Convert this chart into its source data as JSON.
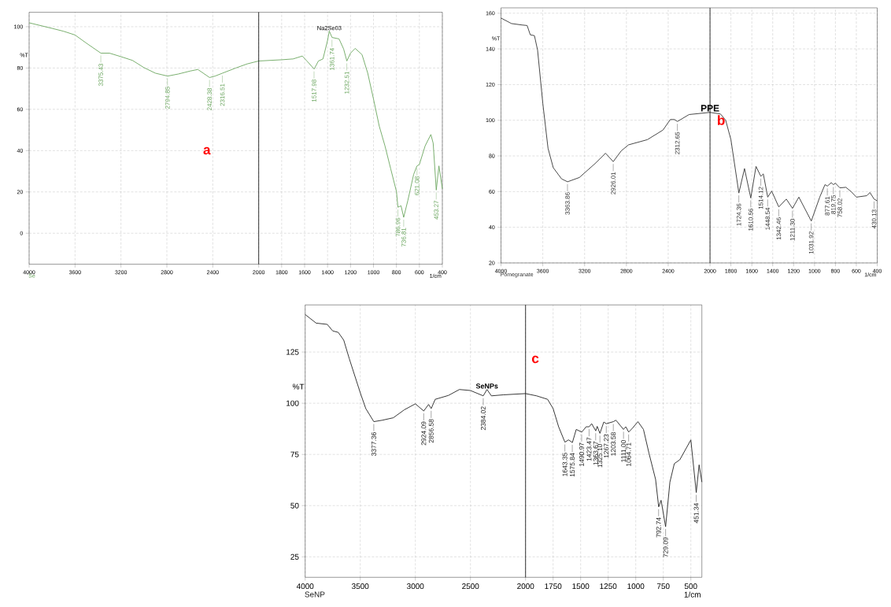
{
  "chart_data": [
    {
      "type": "line",
      "title": "a",
      "xlabel": "1/cm",
      "ylabel": "%T",
      "xlim": [
        4000,
        400
      ],
      "ylim": [
        -15,
        107
      ],
      "xticks": [
        4000,
        3600,
        3200,
        2800,
        2400,
        2000,
        1800,
        1600,
        1400,
        1200,
        1000,
        800,
        600,
        400
      ],
      "yticks": [
        0,
        20,
        40,
        60,
        80,
        100
      ],
      "grid": true,
      "x": [
        4000,
        3800,
        3700,
        3600,
        3500,
        3375,
        3300,
        3200,
        3100,
        3000,
        2900,
        2794,
        2700,
        2600,
        2530,
        2428,
        2380,
        2316,
        2200,
        2100,
        2000,
        1800,
        1700,
        1620,
        1580,
        1517,
        1480,
        1440,
        1400,
        1385,
        1361,
        1300,
        1260,
        1232,
        1200,
        1160,
        1100,
        1050,
        1000,
        950,
        900,
        850,
        800,
        787,
        760,
        737,
        700,
        650,
        621,
        600,
        550,
        500,
        480,
        453,
        430,
        400
      ],
      "series": [
        {
          "color": "#6aa55e",
          "values": [
            101.9,
            99.2,
            97.8,
            96,
            92,
            87.2,
            87.2,
            85.5,
            83.7,
            80.2,
            77.5,
            76.1,
            77.1,
            78.5,
            79.3,
            75.4,
            76.1,
            77.5,
            80,
            82,
            83.4,
            84,
            84.4,
            85.8,
            83.4,
            79.5,
            83.4,
            84.4,
            93.4,
            97.9,
            94.8,
            94.1,
            89.2,
            83.4,
            87.2,
            89.5,
            86.5,
            77.5,
            65,
            51.9,
            42.3,
            31.2,
            20.2,
            12.6,
            13.3,
            7.7,
            16,
            28.5,
            32.6,
            33.3,
            42.3,
            47.8,
            43.6,
            20.9,
            32.6,
            21.5
          ]
        }
      ],
      "ref_lines": [
        {
          "axis": "x",
          "value": 2000,
          "color": "#000000"
        }
      ],
      "annotations": [
        {
          "text": "Na2Se03",
          "x": 1385,
          "y": 97.9
        },
        {
          "text": "3375.43",
          "x": 3375.43,
          "y": 87.2
        },
        {
          "text": "2794.85",
          "x": 2794.85,
          "y": 76.1
        },
        {
          "text": "2428.38",
          "x": 2428.38,
          "y": 75.4
        },
        {
          "text": "2316.51",
          "x": 2316.51,
          "y": 77.5
        },
        {
          "text": "1517.98",
          "x": 1517.98,
          "y": 79.5
        },
        {
          "text": "1361.74",
          "x": 1361.74,
          "y": 94.8
        },
        {
          "text": "1232.51",
          "x": 1232.51,
          "y": 83.4
        },
        {
          "text": "786.96",
          "x": 786.96,
          "y": 12.6
        },
        {
          "text": "736.81",
          "x": 736.81,
          "y": 7.7
        },
        {
          "text": "621.08",
          "x": 621.08,
          "y": 32.6
        },
        {
          "text": "453.27",
          "x": 453.27,
          "y": 20.9
        },
        "Se"
      ]
    },
    {
      "type": "line",
      "title": "b",
      "xlabel": "1/cm",
      "ylabel": "%T",
      "xlim": [
        4000,
        400
      ],
      "ylim": [
        20,
        163
      ],
      "xticks": [
        4000,
        3600,
        3200,
        2800,
        2400,
        2000,
        1800,
        1600,
        1400,
        1200,
        1000,
        800,
        600,
        400
      ],
      "yticks": [
        20,
        40,
        60,
        80,
        100,
        120,
        140,
        160
      ],
      "grid": true,
      "x": [
        4000,
        3900,
        3800,
        3750,
        3720,
        3680,
        3650,
        3600,
        3550,
        3500,
        3420,
        3363,
        3250,
        3100,
        3000,
        2926,
        2850,
        2780,
        2600,
        2450,
        2380,
        2340,
        2312,
        2200,
        2000,
        1900,
        1850,
        1800,
        1760,
        1724,
        1670,
        1610,
        1560,
        1514,
        1490,
        1448,
        1410,
        1342,
        1270,
        1211,
        1150,
        1031,
        950,
        900,
        877,
        840,
        819,
        800,
        758,
        700,
        650,
        600,
        500,
        470,
        430,
        400
      ],
      "series": [
        {
          "color": "#333333",
          "values": [
            157.3,
            154.2,
            153.4,
            153.1,
            147.9,
            147.4,
            139.3,
            109.5,
            84.3,
            73.4,
            67.1,
            65.5,
            67.9,
            75.7,
            81.5,
            76.8,
            82.8,
            86.2,
            89.1,
            94.5,
            100.4,
            100.4,
            99.3,
            103.2,
            104.4,
            103.5,
            100,
            89.1,
            73.4,
            59.2,
            72.9,
            56.4,
            74.1,
            68.6,
            69.9,
            56.9,
            60.3,
            51.4,
            55.8,
            50.6,
            56.9,
            43.5,
            56.9,
            63.9,
            63.1,
            65,
            63.9,
            64.7,
            62.1,
            62.4,
            60,
            56.9,
            57.7,
            59.5,
            55.8,
            54.8
          ]
        }
      ],
      "ref_lines": [
        {
          "axis": "x",
          "value": 2000,
          "color": "#000000"
        }
      ],
      "annotations": [
        {
          "text": "PPE",
          "x": 2000,
          "y": 104.4
        },
        {
          "text": "3363.86",
          "x": 3363.86,
          "y": 65.5
        },
        {
          "text": "2926.01",
          "x": 2926.01,
          "y": 76.8
        },
        {
          "text": "2312.65",
          "x": 2312.65,
          "y": 99.3
        },
        {
          "text": "1724.36",
          "x": 1724.36,
          "y": 59.2
        },
        {
          "text": "1610.56",
          "x": 1610.56,
          "y": 56.4
        },
        {
          "text": "1514.12",
          "x": 1514.12,
          "y": 68.6
        },
        {
          "text": "1448.54",
          "x": 1448.54,
          "y": 56.9
        },
        {
          "text": "1342.46",
          "x": 1342.46,
          "y": 51.4
        },
        {
          "text": "1211.30",
          "x": 1211.3,
          "y": 50.6
        },
        {
          "text": "1031.92",
          "x": 1031.92,
          "y": 43.5
        },
        {
          "text": "877.61",
          "x": 877.61,
          "y": 63.1
        },
        {
          "text": "819.75",
          "x": 819.75,
          "y": 63.9
        },
        {
          "text": "758.02",
          "x": 758.02,
          "y": 62.1
        },
        {
          "text": "430.13",
          "x": 430.13,
          "y": 55.8
        },
        "Pomegranate"
      ]
    },
    {
      "type": "line",
      "title": "c",
      "xlabel": "1/cm",
      "ylabel": "%T",
      "xlim": [
        4000,
        400
      ],
      "ylim": [
        15,
        148
      ],
      "xticks": [
        4000,
        3500,
        3000,
        2500,
        2000,
        1750,
        1500,
        1250,
        1000,
        750,
        500
      ],
      "yticks": [
        25,
        50,
        75,
        100,
        125
      ],
      "grid": true,
      "x": [
        4000,
        3900,
        3800,
        3750,
        3700,
        3650,
        3600,
        3500,
        3450,
        3377,
        3300,
        3200,
        3100,
        3000,
        2924,
        2880,
        2856,
        2820,
        2700,
        2600,
        2500,
        2384,
        2350,
        2310,
        2200,
        2000,
        1900,
        1800,
        1750,
        1700,
        1643,
        1610,
        1575,
        1540,
        1490,
        1450,
        1423,
        1400,
        1363,
        1350,
        1325,
        1290,
        1267,
        1203,
        1180,
        1111,
        1090,
        1064,
        1030,
        980,
        930,
        880,
        820,
        792,
        770,
        729,
        690,
        650,
        600,
        500,
        451,
        425,
        400
      ],
      "series": [
        {
          "color": "#222222",
          "values": [
            143.3,
            139.1,
            138.5,
            135.3,
            134.6,
            130.8,
            121.8,
            105.1,
            97.4,
            91,
            91.7,
            92.9,
            96.8,
            99.7,
            96.2,
            99.4,
            97.4,
            101.9,
            103.8,
            106.7,
            106.2,
            103.6,
            106.7,
            103.6,
            104.1,
            104.7,
            103.6,
            101.9,
            97.4,
            88.5,
            81,
            82.1,
            80.8,
            87.2,
            85.9,
            88.5,
            88.5,
            90,
            86.5,
            88.7,
            85.3,
            90.8,
            90,
            91,
            91.7,
            87.2,
            88.5,
            85.9,
            87.8,
            91,
            87.2,
            75.6,
            62.8,
            49.4,
            52.6,
            39.7,
            61.5,
            70.5,
            72.4,
            82.1,
            56.4,
            69.9,
            61.5
          ]
        }
      ],
      "ref_lines": [
        {
          "axis": "x",
          "value": 2000,
          "color": "#000000"
        }
      ],
      "annotations": [
        {
          "text": "SeNPs",
          "x": 2350,
          "y": 106.7
        },
        {
          "text": "3377.36",
          "x": 3377.36,
          "y": 91
        },
        {
          "text": "2924.09",
          "x": 2924.09,
          "y": 96.2
        },
        {
          "text": "2856.58",
          "x": 2856.58,
          "y": 97.4
        },
        {
          "text": "2384.02",
          "x": 2384.02,
          "y": 103.6
        },
        {
          "text": "1643.35",
          "x": 1643.35,
          "y": 81
        },
        {
          "text": "1575.84",
          "x": 1575.84,
          "y": 80.8
        },
        {
          "text": "1490.97",
          "x": 1490.97,
          "y": 85.9
        },
        {
          "text": "1423.47",
          "x": 1423.47,
          "y": 88.5
        },
        {
          "text": "1363.67",
          "x": 1363.67,
          "y": 86.5
        },
        {
          "text": "1325.10",
          "x": 1325.1,
          "y": 85.3
        },
        {
          "text": "1267.23",
          "x": 1267.23,
          "y": 90
        },
        {
          "text": "1203.58",
          "x": 1203.58,
          "y": 91
        },
        {
          "text": "1111.00",
          "x": 1111.0,
          "y": 87.2
        },
        {
          "text": "1064.71",
          "x": 1064.71,
          "y": 85.9
        },
        {
          "text": "792.74",
          "x": 792.74,
          "y": 49.4
        },
        {
          "text": "729.09",
          "x": 729.09,
          "y": 39.7
        },
        {
          "text": "451.34",
          "x": 451.34,
          "y": 56.4
        },
        "SeNP"
      ]
    }
  ]
}
